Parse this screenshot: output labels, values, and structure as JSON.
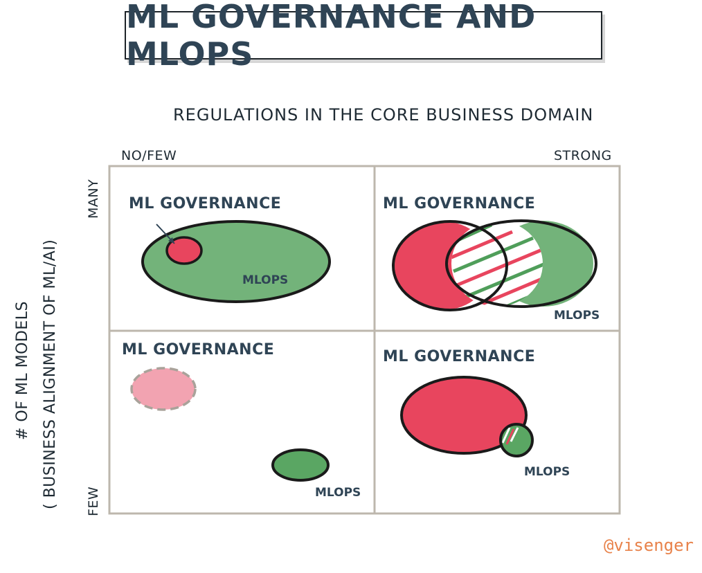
{
  "title": "ML GOVERNANCE AND MLOPS",
  "x_axis": {
    "label": "REGULATIONS IN THE CORE BUSINESS DOMAIN",
    "low": "NO/FEW",
    "high": "STRONG"
  },
  "y_axis": {
    "label_line1": "# OF ML MODELS",
    "label_line2": "( BUSINESS ALIGNMENT OF ML/AI)",
    "high": "MANY",
    "low": "FEW"
  },
  "quadrants": {
    "top_left": {
      "governance": "ML GOVERNANCE",
      "mlops": "MLOPS"
    },
    "top_right": {
      "governance": "ML GOVERNANCE",
      "mlops": "MLOPS"
    },
    "bottom_left": {
      "governance": "ML GOVERNANCE",
      "mlops": "MLOPS"
    },
    "bottom_right": {
      "governance": "ML GOVERNANCE",
      "mlops": "MLOPS"
    }
  },
  "colors": {
    "governance": "#e8455e",
    "mlops": "#4f9e5a",
    "outline": "#1a1a1a",
    "grid": "#bdb7ad"
  },
  "watermark": "@visenger"
}
